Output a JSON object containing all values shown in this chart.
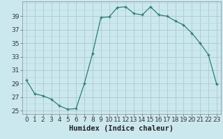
{
  "x": [
    0,
    1,
    2,
    3,
    4,
    5,
    6,
    7,
    8,
    9,
    10,
    11,
    12,
    13,
    14,
    15,
    16,
    17,
    18,
    19,
    20,
    21,
    22,
    23
  ],
  "y": [
    29.5,
    27.5,
    27.2,
    26.7,
    25.7,
    25.2,
    25.3,
    29.0,
    33.5,
    38.8,
    38.9,
    40.3,
    40.4,
    39.4,
    39.2,
    40.4,
    39.2,
    39.0,
    38.3,
    37.7,
    36.5,
    35.0,
    33.3,
    28.9
  ],
  "line_color": "#2e7d6e",
  "bg_color": "#cce8ef",
  "grid_major_color": "#b0d4dc",
  "grid_minor_color": "#daeef3",
  "xlabel": "Humidex (Indice chaleur)",
  "yticks": [
    25,
    27,
    29,
    31,
    33,
    35,
    37,
    39
  ],
  "ylim": [
    24.5,
    41.2
  ],
  "xlim": [
    -0.5,
    23.5
  ],
  "xlabel_fontsize": 7.5,
  "tick_fontsize": 6.5,
  "tick_color": "#2e7d6e"
}
